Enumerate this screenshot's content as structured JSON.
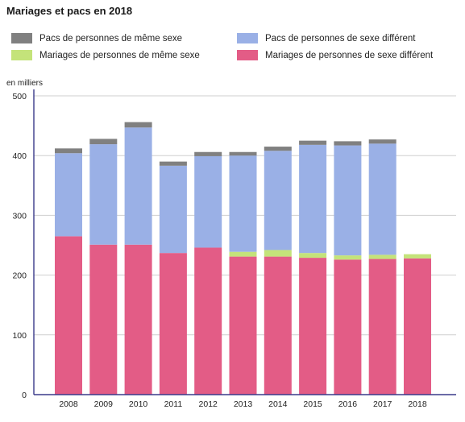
{
  "chart_data": {
    "type": "bar",
    "stacked": true,
    "title": "Mariages et pacs en 2018",
    "unit_label": "en milliers",
    "xlabel": "",
    "ylabel": "",
    "ylim": [
      0,
      500
    ],
    "yticks": [
      0,
      100,
      200,
      300,
      400,
      500
    ],
    "grid": true,
    "legend_position": "top",
    "categories": [
      "2008",
      "2009",
      "2010",
      "2011",
      "2012",
      "2013",
      "2014",
      "2015",
      "2016",
      "2017",
      "2018"
    ],
    "series": [
      {
        "name": "Mariages de personnes de sexe différent",
        "color": "#e35c86",
        "values": [
          265,
          251,
          251,
          237,
          246,
          231,
          231,
          229,
          226,
          227,
          228
        ]
      },
      {
        "name": "Mariages de personnes de même sexe",
        "color": "#c4e37a",
        "values": [
          0,
          0,
          0,
          0,
          0,
          8,
          11,
          8,
          7,
          7,
          7
        ]
      },
      {
        "name": "Pacs de personnes de sexe différent",
        "color": "#9ab0e6",
        "values": [
          139,
          168,
          196,
          146,
          153,
          161,
          166,
          181,
          184,
          186,
          0
        ]
      },
      {
        "name": "Pacs de personnes de même sexe",
        "color": "#808080",
        "values": [
          8,
          9,
          9,
          7,
          7,
          6,
          7,
          7,
          7,
          7,
          0
        ]
      }
    ],
    "legend_order": [
      3,
      2,
      1,
      0
    ]
  }
}
